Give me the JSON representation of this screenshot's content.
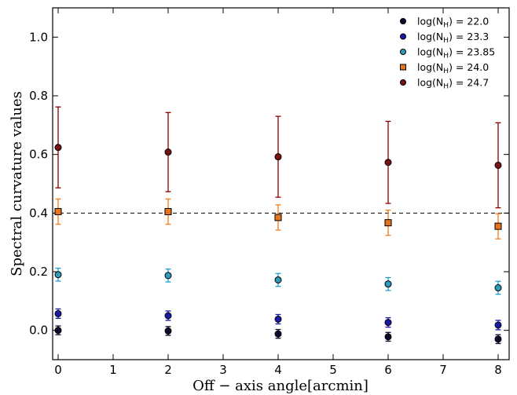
{
  "chart_data": {
    "type": "scatter",
    "xlabel": "Off − axis angle[arcmin]",
    "ylabel": "Spectral curvature values",
    "xlim": [
      -0.1,
      8.2
    ],
    "ylim": [
      -0.1,
      1.1
    ],
    "xticks": [
      0,
      1,
      2,
      3,
      4,
      5,
      6,
      7,
      8
    ],
    "yticks": [
      0.0,
      0.2,
      0.4,
      0.6,
      0.8,
      1.0
    ],
    "xtick_labels": [
      "0",
      "1",
      "2",
      "3",
      "4",
      "5",
      "6",
      "7",
      "8"
    ],
    "ytick_labels": [
      "0.0",
      "0.2",
      "0.4",
      "0.6",
      "0.8",
      "1.0"
    ],
    "grid": false,
    "legend_position": "top-right",
    "reference_line": {
      "y": 0.4,
      "style": "dashed",
      "color": "#000000"
    },
    "series": [
      {
        "label_base": "log(N",
        "label_sub": "H",
        "label_value": ") = 22.0",
        "marker": "circle",
        "color": "#0b0b2e",
        "errcolor": "#0b0b2e",
        "x": [
          0,
          2,
          4,
          6,
          8
        ],
        "y": [
          0.0,
          -0.002,
          -0.012,
          -0.022,
          -0.03
        ],
        "err": [
          0.015,
          0.015,
          0.015,
          0.015,
          0.015
        ]
      },
      {
        "label_base": "log(N",
        "label_sub": "H",
        "label_value": ") = 23.3",
        "marker": "circle",
        "color": "#1a1aa8",
        "errcolor": "#1a1aa8",
        "x": [
          0,
          2,
          4,
          6,
          8
        ],
        "y": [
          0.057,
          0.05,
          0.038,
          0.027,
          0.018
        ],
        "err": [
          0.016,
          0.016,
          0.016,
          0.016,
          0.016
        ]
      },
      {
        "label_base": "log(N",
        "label_sub": "H",
        "label_value": ") = 23.85",
        "marker": "circle",
        "color": "#2f9bbb",
        "errcolor": "#1aa3d1",
        "x": [
          0,
          2,
          4,
          6,
          8
        ],
        "y": [
          0.19,
          0.187,
          0.172,
          0.158,
          0.145
        ],
        "err": [
          0.022,
          0.022,
          0.022,
          0.022,
          0.022
        ]
      },
      {
        "label_base": "log(N",
        "label_sub": "H",
        "label_value": ") = 24.0",
        "marker": "square",
        "color": "#e8741e",
        "errcolor": "#f07e1a",
        "x": [
          0,
          2,
          4,
          6,
          8
        ],
        "y": [
          0.405,
          0.405,
          0.385,
          0.367,
          0.355
        ],
        "err": [
          0.043,
          0.043,
          0.043,
          0.043,
          0.043
        ]
      },
      {
        "label_base": "log(N",
        "label_sub": "H",
        "label_value": ") = 24.7",
        "marker": "circle",
        "color": "#7a1212",
        "errcolor": "#8b0000",
        "x": [
          0,
          2,
          4,
          6,
          8
        ],
        "y": [
          0.624,
          0.608,
          0.592,
          0.573,
          0.563
        ],
        "err": [
          0.138,
          0.135,
          0.138,
          0.14,
          0.145
        ]
      }
    ]
  }
}
